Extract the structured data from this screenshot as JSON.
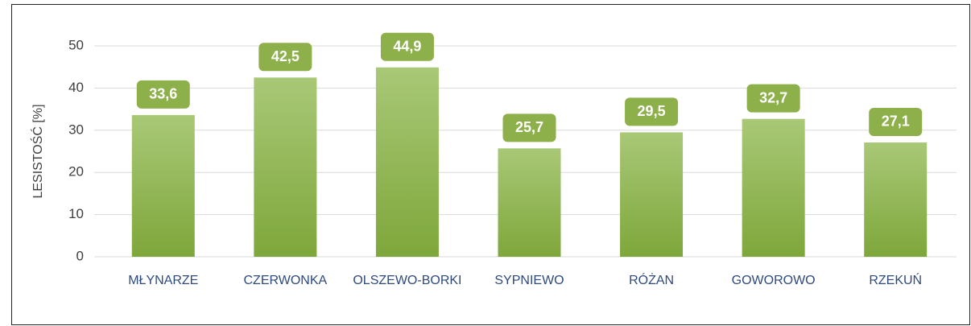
{
  "chart_data": {
    "type": "bar",
    "y_axis_label": "LESISTOŚĆ [%]",
    "categories": [
      "MŁYNARZE",
      "CZERWONKA",
      "OLSZEWO-BORKI",
      "SYPNIEWO",
      "RÓŻAN",
      "GOWOROWO",
      "RZEKUŃ"
    ],
    "values": [
      33.6,
      42.5,
      44.9,
      25.7,
      29.5,
      32.7,
      27.1
    ],
    "value_labels": [
      "33,6",
      "42,5",
      "44,9",
      "25,7",
      "29,5",
      "32,7",
      "27,1"
    ],
    "color": "#8db04a",
    "ylim": [
      0,
      50
    ],
    "yticks": [
      0,
      10,
      20,
      30,
      40,
      50
    ],
    "grid": true
  }
}
